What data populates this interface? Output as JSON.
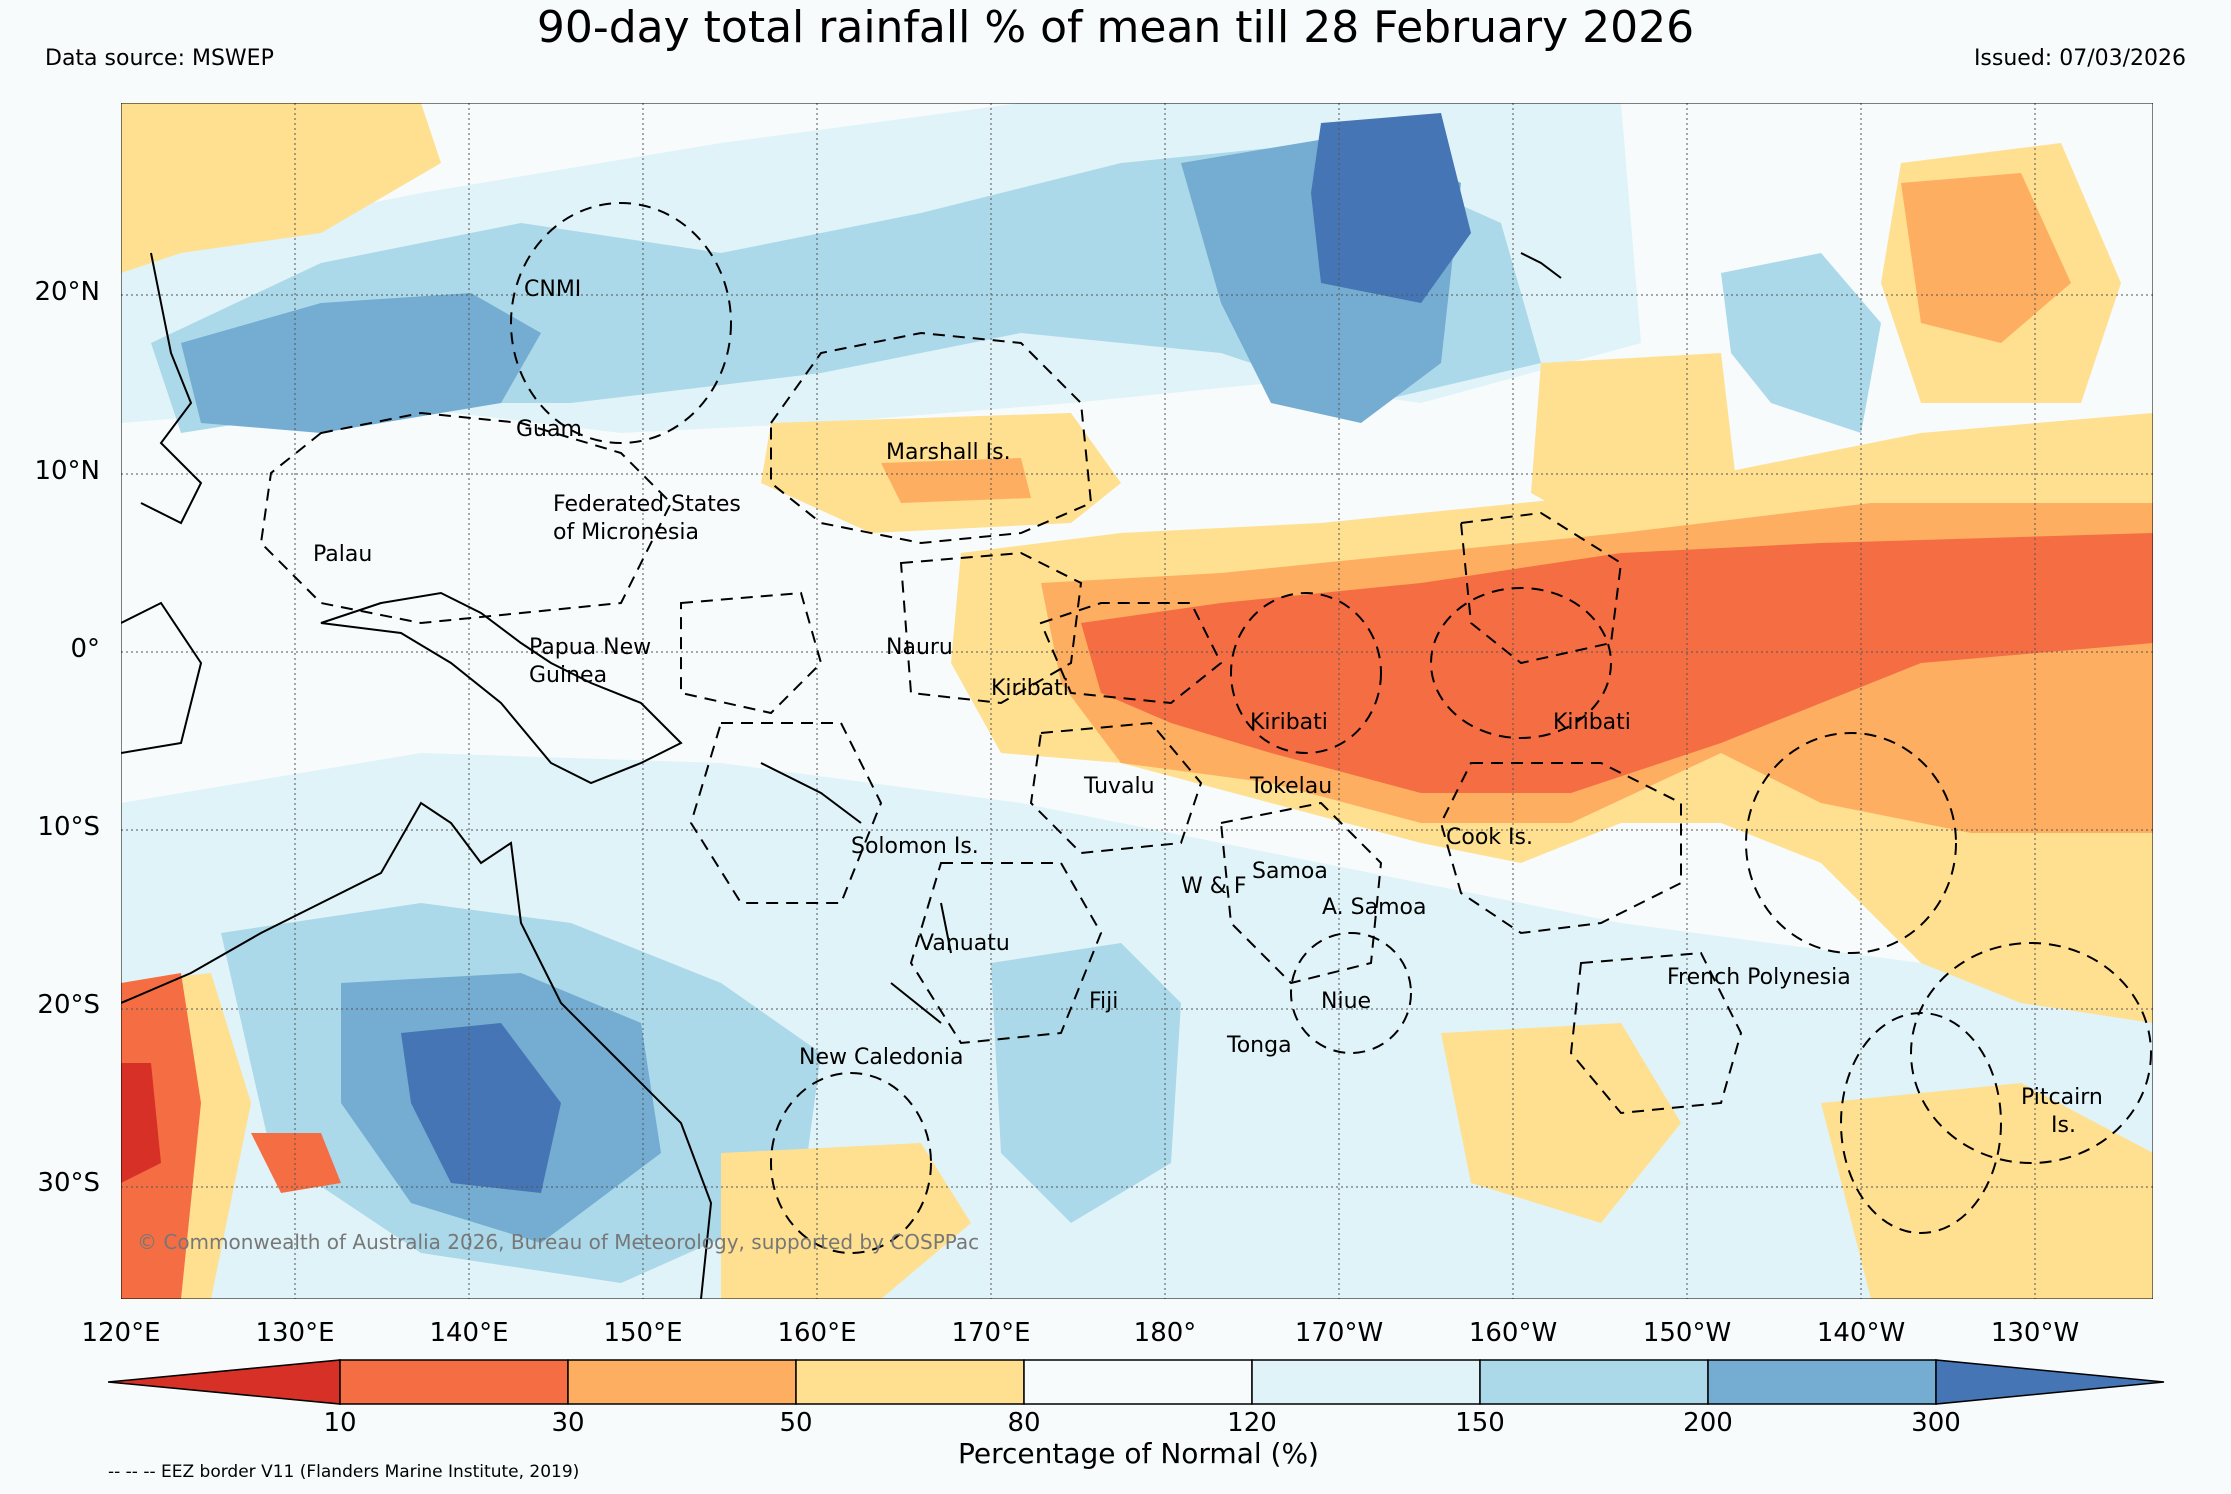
{
  "title": "90-day total rainfall % of mean till 28 February 2026",
  "data_source": "Data source: MSWEP",
  "issued": "Issued: 07/03/2026",
  "map": {
    "lat_labels": [
      "20°N",
      "10°N",
      "0°",
      "10°S",
      "20°S",
      "30°S"
    ],
    "lon_labels": [
      "120°E",
      "130°E",
      "140°E",
      "150°E",
      "160°E",
      "170°E",
      "180°",
      "170°W",
      "160°W",
      "150°W",
      "140°W",
      "130°W"
    ],
    "places": {
      "cnmi": "CNMI",
      "guam": "Guam",
      "marshall": "Marshall Is.",
      "fsm": "Federated States\nof Micronesia",
      "palau": "Palau",
      "png": "Papua New\nGuinea",
      "nauru": "Nauru",
      "kiribati_w": "Kiribati",
      "kiribati_c": "Kiribati",
      "kiribati_e": "Kiribati",
      "tuvalu": "Tuvalu",
      "tokelau": "Tokelau",
      "cook": "Cook Is.",
      "solomon": "Solomon Is.",
      "samoa": "Samoa",
      "wf": "W & F",
      "asamoa": "A. Samoa",
      "vanuatu": "Vanuatu",
      "fiji": "Fiji",
      "niue": "Niue",
      "tonga": "Tonga",
      "french_polynesia": "French Polynesia",
      "new_caledonia": "New Caledonia",
      "pitcairn": "Pitcairn\nIs."
    },
    "copyright": "© Commonwealth of Australia 2026, Bureau of Meteorology, supported by COSPPac"
  },
  "colorbar": {
    "label": "Percentage of Normal (%)",
    "ticks": [
      "10",
      "30",
      "50",
      "80",
      "120",
      "150",
      "200",
      "300"
    ],
    "colors": [
      "#d73027",
      "#f46d43",
      "#fdae61",
      "#fee090",
      "#f7fbfc",
      "#e0f3f8",
      "#abd9e9",
      "#74add1",
      "#4575b4"
    ]
  },
  "eez_note": "-- -- -- EEZ border V11 (Flanders Marine Institute, 2019)"
}
